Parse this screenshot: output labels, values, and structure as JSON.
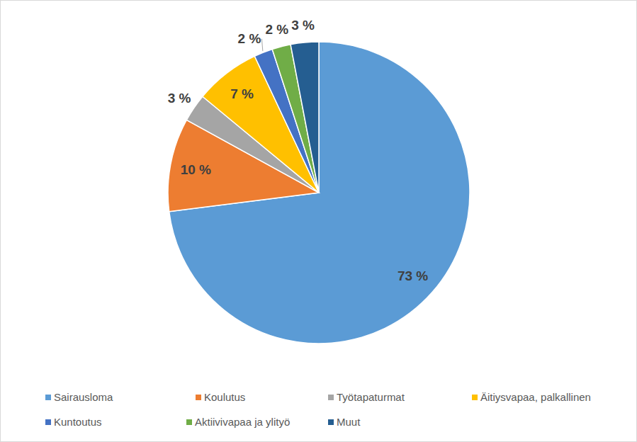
{
  "chart_data": {
    "type": "pie",
    "categories": [
      "Sairausloma",
      "Koulutus",
      "Työtapaturmat",
      "Äitiysvapaa, palkallinen",
      "Kuntoutus",
      "Aktiivivapaa ja ylityö",
      "Muut"
    ],
    "values": [
      73,
      10,
      3,
      7,
      2,
      2,
      3
    ],
    "value_labels": [
      "73 %",
      "10 %",
      "3 %",
      "7 %",
      "2 %",
      "2 %",
      "3 %"
    ],
    "colors": [
      "#5b9bd5",
      "#ed7d31",
      "#a5a5a5",
      "#ffc000",
      "#4472c4",
      "#70ad47",
      "#255e91"
    ],
    "data_labels": true,
    "legend": "bottom"
  }
}
